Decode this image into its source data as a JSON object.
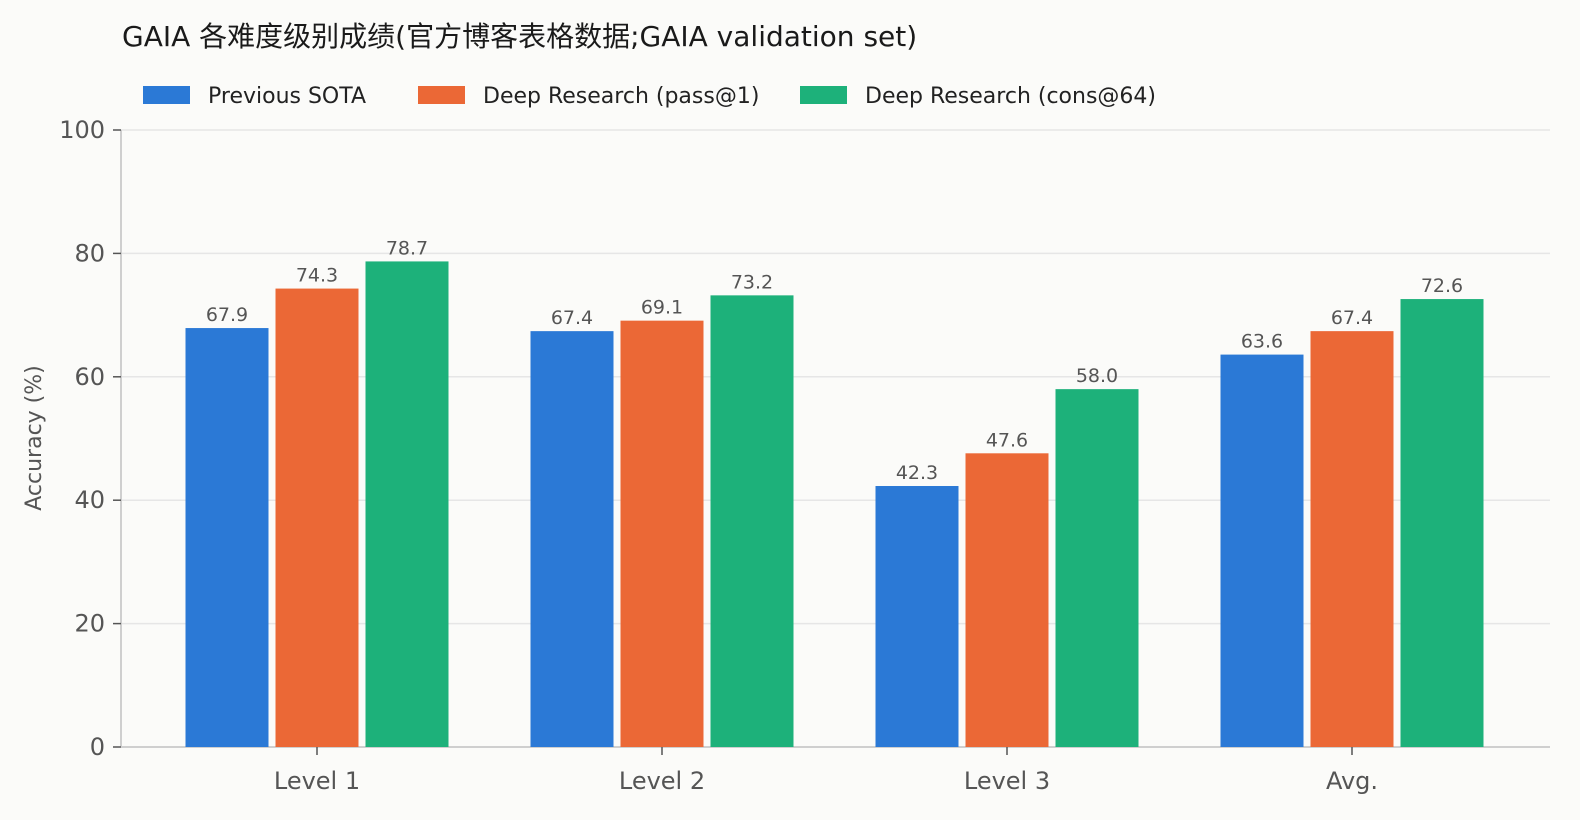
{
  "chart_data": {
    "type": "bar",
    "title": "GAIA 各难度级别成绩(官方博客表格数据;GAIA validation set)",
    "xlabel": "",
    "ylabel": "Accuracy (%)",
    "ylim": [
      0,
      100
    ],
    "yticks": [
      "0",
      "20",
      "40",
      "60",
      "80",
      "100"
    ],
    "grid": "horizontal",
    "legend_position": "top-left",
    "categories": [
      "Level 1",
      "Level 2",
      "Level 3",
      "Avg."
    ],
    "series": [
      {
        "name": "Previous SOTA",
        "color": "#2b79d6",
        "values": [
          67.9,
          67.4,
          42.3,
          63.6
        ],
        "labels": [
          "67.9",
          "67.4",
          "42.3",
          "63.6"
        ]
      },
      {
        "name": "Deep Research (pass@1)",
        "color": "#eb6836",
        "values": [
          74.3,
          69.1,
          47.6,
          67.4
        ],
        "labels": [
          "74.3",
          "69.1",
          "47.6",
          "67.4"
        ]
      },
      {
        "name": "Deep Research (cons@64)",
        "color": "#1db17a",
        "values": [
          78.7,
          73.2,
          58.0,
          72.6
        ],
        "labels": [
          "78.7",
          "73.2",
          "58.0",
          "72.6"
        ]
      }
    ]
  }
}
